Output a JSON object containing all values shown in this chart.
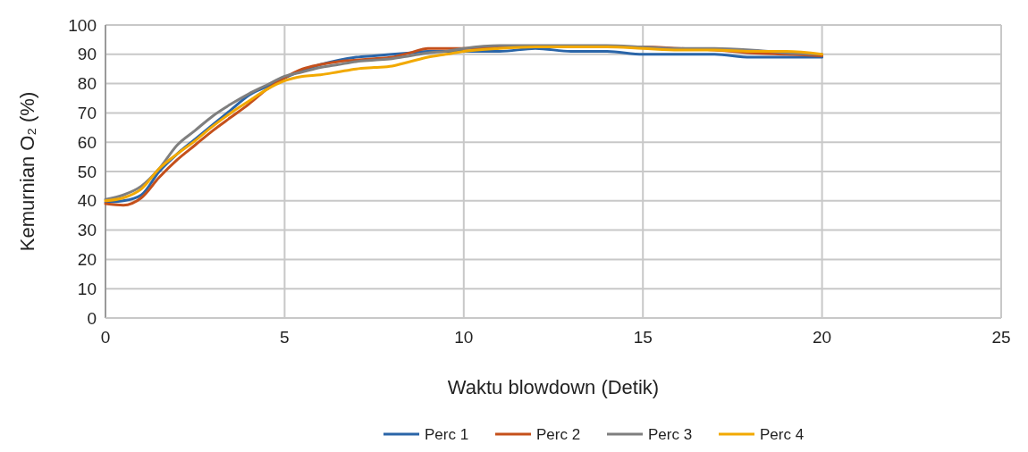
{
  "chart_data": {
    "type": "line",
    "xlabel": "Waktu blowdown (Detik)",
    "ylabel": "Kemurnian O₂    (%)",
    "xlim": [
      0,
      25
    ],
    "xticks": [
      0,
      5,
      10,
      15,
      20,
      25
    ],
    "ylim": [
      0,
      100
    ],
    "yticks": [
      0,
      10,
      20,
      30,
      40,
      50,
      60,
      70,
      80,
      90,
      100
    ],
    "grid": true,
    "legend": "bottom",
    "line_style": "solid",
    "marker": "none",
    "x": [
      0,
      0.5,
      1,
      1.5,
      2,
      2.5,
      3,
      3.5,
      4,
      4.5,
      5,
      5.5,
      6,
      6.5,
      7,
      7.5,
      8,
      8.5,
      9,
      9.5,
      10,
      11,
      12,
      13,
      14,
      15,
      16,
      17,
      18,
      19,
      20
    ],
    "series": [
      {
        "name": "Perc 1",
        "color": "#2a65a8",
        "values": [
          39.5,
          40,
          42,
          50,
          56,
          61,
          66,
          71,
          76,
          79,
          82,
          84.5,
          86.5,
          88,
          89,
          89.5,
          90,
          90.5,
          91,
          91,
          91,
          91,
          92,
          91,
          91,
          90,
          90,
          90,
          89,
          89,
          89
        ]
      },
      {
        "name": "Perc 2",
        "color": "#c5501b",
        "values": [
          39,
          38.5,
          41,
          48,
          54,
          59,
          64,
          68.5,
          73,
          78,
          82,
          85,
          86.5,
          87.5,
          88,
          88.5,
          89,
          90.5,
          92,
          92,
          92,
          92.5,
          92.5,
          92.5,
          92.5,
          92.5,
          92,
          91.5,
          90.5,
          90,
          89.5
        ]
      },
      {
        "name": "Perc 3",
        "color": "#7f7f7f",
        "values": [
          40.5,
          42,
          45,
          51,
          59,
          64,
          69,
          73,
          76.5,
          79.5,
          82.5,
          84,
          85.5,
          86.5,
          87.5,
          88,
          88.5,
          89.5,
          90.5,
          91,
          92,
          93,
          93,
          93,
          93,
          92.5,
          92,
          92,
          91.5,
          90.5,
          90
        ]
      },
      {
        "name": "Perc 4",
        "color": "#f2a900",
        "values": [
          40,
          41,
          44,
          51,
          56,
          60.5,
          65.5,
          70,
          74,
          78,
          81,
          82.5,
          83,
          84,
          85,
          85.5,
          86,
          87.5,
          89,
          90,
          91,
          92,
          92.5,
          92.5,
          92.5,
          92,
          91.5,
          91.5,
          91,
          91,
          90
        ]
      }
    ]
  }
}
